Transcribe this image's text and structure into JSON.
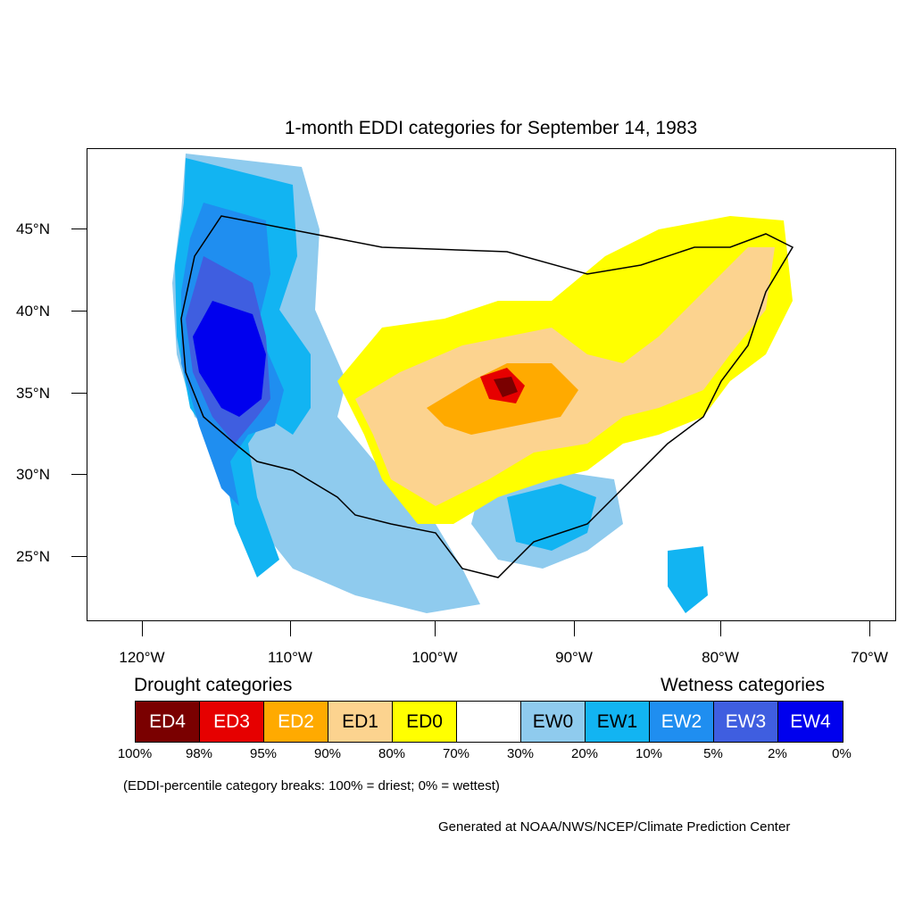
{
  "title": "1-month EDDI categories for September 14, 1983",
  "lat_labels": [
    "45°N",
    "40°N",
    "35°N",
    "30°N",
    "25°N"
  ],
  "lon_labels": [
    "120°W",
    "110°W",
    "100°W",
    "90°W",
    "80°W",
    "70°W"
  ],
  "legend": {
    "drought_heading": "Drought categories",
    "wetness_heading": "Wetness categories",
    "categories": [
      {
        "label": "ED4",
        "color": "#7a0000",
        "text_color": "#ffffff"
      },
      {
        "label": "ED3",
        "color": "#e60000",
        "text_color": "#ffffff"
      },
      {
        "label": "ED2",
        "color": "#ffaa00",
        "text_color": "#ffffff"
      },
      {
        "label": "ED1",
        "color": "#fcd38f",
        "text_color": "#000000"
      },
      {
        "label": "ED0",
        "color": "#ffff00",
        "text_color": "#000000"
      },
      {
        "label": "",
        "color": "#ffffff",
        "text_color": "#000000"
      },
      {
        "label": "EW0",
        "color": "#8fcbee",
        "text_color": "#000000"
      },
      {
        "label": "EW1",
        "color": "#12b4f2",
        "text_color": "#000000"
      },
      {
        "label": "EW2",
        "color": "#1f8ef0",
        "text_color": "#ffffff"
      },
      {
        "label": "EW3",
        "color": "#3f5ee0",
        "text_color": "#ffffff"
      },
      {
        "label": "EW4",
        "color": "#0000ee",
        "text_color": "#ffffff"
      }
    ],
    "breaks": [
      "100%",
      "98%",
      "95%",
      "90%",
      "80%",
      "70%",
      "30%",
      "20%",
      "10%",
      "5%",
      "2%",
      "0%"
    ]
  },
  "note": "(EDDI-percentile category breaks: 100% = driest; 0% = wettest)",
  "credit": "Generated at NOAA/NWS/NCEP/Climate Prediction Center"
}
